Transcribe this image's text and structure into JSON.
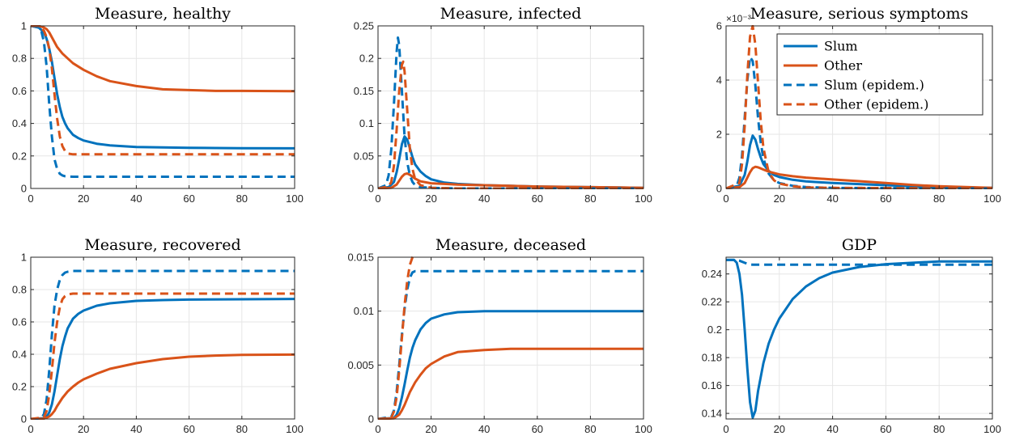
{
  "colors": {
    "slum": "#0072BD",
    "other": "#D95319"
  },
  "legend": {
    "placement": "top-right",
    "entries": [
      "Slum",
      "Other",
      "Slum (epidem.)",
      "Other (epidem.)"
    ]
  },
  "chart_data": [
    {
      "type": "line",
      "title": "Measure, healthy",
      "xlim": [
        0,
        100
      ],
      "ylim": [
        0,
        1
      ],
      "grid": true,
      "xticks": [
        0,
        20,
        40,
        60,
        80,
        100
      ],
      "yticks": [
        0,
        0.2,
        0.4,
        0.6,
        0.8,
        1
      ],
      "ytick_labels": [
        "0",
        "0.2",
        "0.4",
        "0.6",
        "0.8",
        "1"
      ],
      "series": [
        {
          "name": "Slum",
          "x": [
            0,
            3,
            5,
            6,
            7,
            8,
            9,
            10,
            11,
            12,
            13,
            14,
            16,
            18,
            20,
            25,
            30,
            40,
            50,
            60,
            70,
            80,
            100
          ],
          "y": [
            1,
            0.99,
            0.96,
            0.92,
            0.86,
            0.78,
            0.68,
            0.58,
            0.5,
            0.44,
            0.4,
            0.37,
            0.33,
            0.31,
            0.295,
            0.275,
            0.265,
            0.255,
            0.252,
            0.25,
            0.249,
            0.248,
            0.247
          ]
        },
        {
          "name": "Other",
          "x": [
            0,
            3,
            5,
            6,
            7,
            8,
            10,
            12,
            14,
            16,
            20,
            25,
            30,
            40,
            50,
            60,
            70,
            80,
            100
          ],
          "y": [
            1,
            1,
            0.99,
            0.98,
            0.96,
            0.93,
            0.87,
            0.83,
            0.8,
            0.77,
            0.73,
            0.69,
            0.66,
            0.63,
            0.61,
            0.605,
            0.6,
            0.6,
            0.598
          ]
        },
        {
          "name": "Slum (epidem.)",
          "x": [
            0,
            3,
            4,
            5,
            6,
            7,
            8,
            9,
            10,
            11,
            12,
            13,
            14,
            16,
            100
          ],
          "y": [
            1,
            0.99,
            0.97,
            0.9,
            0.75,
            0.52,
            0.32,
            0.18,
            0.12,
            0.09,
            0.08,
            0.075,
            0.073,
            0.072,
            0.072
          ]
        },
        {
          "name": "Other (epidem.)",
          "x": [
            0,
            3,
            5,
            6,
            7,
            8,
            9,
            10,
            11,
            12,
            13,
            14,
            16,
            100
          ],
          "y": [
            1,
            1,
            0.97,
            0.93,
            0.86,
            0.74,
            0.58,
            0.43,
            0.32,
            0.26,
            0.23,
            0.215,
            0.21,
            0.21
          ]
        }
      ]
    },
    {
      "type": "line",
      "title": "Measure, infected",
      "xlim": [
        0,
        100
      ],
      "ylim": [
        0,
        0.25
      ],
      "grid": true,
      "xticks": [
        0,
        20,
        40,
        60,
        80,
        100
      ],
      "yticks": [
        0,
        0.05,
        0.1,
        0.15,
        0.2,
        0.25
      ],
      "ytick_labels": [
        "0",
        "0.05",
        "0.1",
        "0.15",
        "0.2",
        "0.25"
      ],
      "series": [
        {
          "name": "Slum",
          "x": [
            0,
            4,
            6,
            7,
            8,
            9,
            10,
            11,
            12,
            13,
            14,
            16,
            18,
            20,
            25,
            30,
            40,
            50,
            60,
            80,
            100
          ],
          "y": [
            0,
            0.002,
            0.01,
            0.025,
            0.045,
            0.068,
            0.08,
            0.075,
            0.062,
            0.048,
            0.037,
            0.026,
            0.019,
            0.014,
            0.009,
            0.007,
            0.005,
            0.004,
            0.003,
            0.002,
            0.001
          ]
        },
        {
          "name": "Other",
          "x": [
            0,
            5,
            7,
            8,
            9,
            10,
            11,
            12,
            13,
            14,
            16,
            20,
            25,
            30,
            40,
            60,
            80,
            100
          ],
          "y": [
            0,
            0.001,
            0.006,
            0.012,
            0.018,
            0.022,
            0.023,
            0.021,
            0.018,
            0.015,
            0.011,
            0.008,
            0.007,
            0.006,
            0.005,
            0.003,
            0.002,
            0.001
          ]
        },
        {
          "name": "Slum (epidem.)",
          "x": [
            0,
            3,
            4,
            5,
            6,
            7,
            7.5,
            8,
            9,
            10,
            11,
            12,
            13,
            14,
            16,
            20,
            30,
            100
          ],
          "y": [
            0,
            0.005,
            0.02,
            0.06,
            0.13,
            0.21,
            0.232,
            0.22,
            0.15,
            0.08,
            0.04,
            0.02,
            0.01,
            0.005,
            0.002,
            0.001,
            0,
            0
          ]
        },
        {
          "name": "Other (epidem.)",
          "x": [
            0,
            4,
            5,
            6,
            7,
            8,
            9,
            9.5,
            10,
            11,
            12,
            13,
            14,
            16,
            20,
            30,
            100
          ],
          "y": [
            0,
            0.003,
            0.01,
            0.035,
            0.09,
            0.15,
            0.19,
            0.195,
            0.18,
            0.12,
            0.06,
            0.03,
            0.014,
            0.005,
            0.001,
            0,
            0
          ]
        }
      ]
    },
    {
      "type": "line",
      "title": "Measure, serious symptoms",
      "xlim": [
        0,
        100
      ],
      "ylim": [
        0,
        6
      ],
      "grid": true,
      "exponent_label": "×10⁻³",
      "xticks": [
        0,
        20,
        40,
        60,
        80,
        100
      ],
      "yticks": [
        0,
        2,
        4,
        6
      ],
      "ytick_labels": [
        "0",
        "2",
        "4",
        "6"
      ],
      "series": [
        {
          "name": "Slum",
          "x": [
            0,
            5,
            7,
            8,
            9,
            10,
            11,
            12,
            13,
            14,
            16,
            18,
            20,
            25,
            30,
            40,
            50,
            60,
            70,
            80,
            100
          ],
          "y": [
            0,
            0.1,
            0.5,
            1.0,
            1.6,
            1.95,
            1.8,
            1.45,
            1.15,
            0.9,
            0.65,
            0.5,
            0.42,
            0.32,
            0.26,
            0.2,
            0.16,
            0.12,
            0.08,
            0.05,
            0.02
          ]
        },
        {
          "name": "Other",
          "x": [
            0,
            5,
            7,
            8,
            9,
            10,
            11,
            12,
            13,
            14,
            16,
            20,
            25,
            30,
            40,
            50,
            60,
            70,
            80,
            90,
            100
          ],
          "y": [
            0,
            0.05,
            0.2,
            0.4,
            0.6,
            0.75,
            0.8,
            0.78,
            0.74,
            0.7,
            0.62,
            0.52,
            0.45,
            0.4,
            0.33,
            0.27,
            0.2,
            0.13,
            0.08,
            0.05,
            0.02
          ]
        },
        {
          "name": "Slum (epidem.)",
          "x": [
            0,
            4,
            5,
            6,
            7,
            8,
            9,
            10,
            11,
            12,
            13,
            14,
            16,
            18,
            20,
            25,
            30,
            40,
            100
          ],
          "y": [
            0,
            0.1,
            0.4,
            1.2,
            2.6,
            4.0,
            4.85,
            4.7,
            3.8,
            2.6,
            1.7,
            1.1,
            0.55,
            0.3,
            0.2,
            0.1,
            0.05,
            0.02,
            0
          ]
        },
        {
          "name": "Other (epidem.)",
          "x": [
            0,
            5,
            6,
            7,
            8,
            9,
            10,
            11,
            12,
            13,
            14,
            16,
            18,
            20,
            25,
            30,
            40,
            100
          ],
          "y": [
            0,
            0.2,
            0.9,
            2.3,
            4.2,
            5.6,
            6.0,
            5.3,
            3.9,
            2.5,
            1.5,
            0.6,
            0.3,
            0.18,
            0.08,
            0.04,
            0.02,
            0
          ]
        }
      ]
    },
    {
      "type": "line",
      "title": "Measure, recovered",
      "xlim": [
        0,
        100
      ],
      "ylim": [
        0,
        1
      ],
      "grid": true,
      "xticks": [
        0,
        20,
        40,
        60,
        80,
        100
      ],
      "yticks": [
        0,
        0.2,
        0.4,
        0.6,
        0.8,
        1
      ],
      "ytick_labels": [
        "0",
        "0.2",
        "0.4",
        "0.6",
        "0.8",
        "1"
      ],
      "series": [
        {
          "name": "Slum",
          "x": [
            0,
            5,
            6,
            7,
            8,
            9,
            10,
            11,
            12,
            13,
            14,
            16,
            18,
            20,
            25,
            30,
            40,
            50,
            60,
            80,
            100
          ],
          "y": [
            0,
            0.005,
            0.015,
            0.04,
            0.09,
            0.17,
            0.27,
            0.37,
            0.45,
            0.51,
            0.56,
            0.62,
            0.65,
            0.67,
            0.7,
            0.715,
            0.73,
            0.735,
            0.738,
            0.74,
            0.742
          ]
        },
        {
          "name": "Other",
          "x": [
            0,
            5,
            7,
            8,
            9,
            10,
            12,
            14,
            16,
            18,
            20,
            25,
            30,
            40,
            50,
            60,
            70,
            80,
            100
          ],
          "y": [
            0,
            0.002,
            0.015,
            0.03,
            0.05,
            0.08,
            0.13,
            0.17,
            0.2,
            0.225,
            0.245,
            0.28,
            0.31,
            0.345,
            0.37,
            0.385,
            0.392,
            0.396,
            0.398
          ]
        },
        {
          "name": "Slum (epidem.)",
          "x": [
            0,
            4,
            5,
            6,
            7,
            8,
            9,
            10,
            11,
            12,
            13,
            14,
            16,
            100
          ],
          "y": [
            0,
            0.005,
            0.03,
            0.12,
            0.3,
            0.52,
            0.7,
            0.8,
            0.86,
            0.89,
            0.905,
            0.91,
            0.915,
            0.915
          ]
        },
        {
          "name": "Other (epidem.)",
          "x": [
            0,
            5,
            6,
            7,
            8,
            9,
            10,
            11,
            12,
            13,
            14,
            16,
            100
          ],
          "y": [
            0,
            0.01,
            0.05,
            0.15,
            0.3,
            0.47,
            0.6,
            0.69,
            0.74,
            0.76,
            0.77,
            0.775,
            0.775
          ]
        }
      ]
    },
    {
      "type": "line",
      "title": "Measure, deceased",
      "xlim": [
        0,
        100
      ],
      "ylim": [
        0,
        0.015
      ],
      "grid": true,
      "xticks": [
        0,
        20,
        40,
        60,
        80,
        100
      ],
      "yticks": [
        0,
        0.005,
        0.01,
        0.015
      ],
      "ytick_labels": [
        "0",
        "0.005",
        "0.01",
        "0.015"
      ],
      "series": [
        {
          "name": "Slum",
          "x": [
            0,
            6,
            7,
            8,
            9,
            10,
            11,
            12,
            13,
            14,
            16,
            18,
            20,
            25,
            30,
            40,
            50,
            60,
            80,
            100
          ],
          "y": [
            0,
            0.0001,
            0.0004,
            0.001,
            0.002,
            0.0032,
            0.0045,
            0.0057,
            0.0066,
            0.0073,
            0.0083,
            0.0089,
            0.0093,
            0.0097,
            0.0099,
            0.01,
            0.01,
            0.01,
            0.01,
            0.01
          ]
        },
        {
          "name": "Other",
          "x": [
            0,
            6,
            8,
            9,
            10,
            11,
            12,
            14,
            16,
            18,
            20,
            25,
            30,
            40,
            50,
            60,
            80,
            100
          ],
          "y": [
            0,
            5e-05,
            0.0004,
            0.0008,
            0.0013,
            0.0019,
            0.0025,
            0.0034,
            0.0041,
            0.0047,
            0.0051,
            0.0058,
            0.0062,
            0.0064,
            0.0065,
            0.0065,
            0.0065,
            0.0065
          ]
        },
        {
          "name": "Slum (epidem.)",
          "x": [
            0,
            5,
            6,
            7,
            8,
            9,
            10,
            11,
            12,
            13,
            14,
            16,
            100
          ],
          "y": [
            0,
            0.0002,
            0.0008,
            0.0025,
            0.005,
            0.0078,
            0.0102,
            0.012,
            0.0131,
            0.0136,
            0.0137,
            0.0137,
            0.0137
          ]
        },
        {
          "name": "Other (epidem.)",
          "x": [
            0,
            5,
            6,
            7,
            8,
            9,
            10,
            11,
            12,
            13,
            14,
            16,
            100
          ],
          "y": [
            0,
            0.0001,
            0.0007,
            0.002,
            0.0045,
            0.0075,
            0.0105,
            0.0128,
            0.0143,
            0.015,
            0.0153,
            0.0154,
            0.0154
          ]
        }
      ]
    },
    {
      "type": "line",
      "title": "GDP",
      "xlim": [
        0,
        100
      ],
      "ylim": [
        0.136,
        0.252
      ],
      "grid": true,
      "xticks": [
        0,
        20,
        40,
        60,
        80,
        100
      ],
      "yticks": [
        0.14,
        0.16,
        0.18,
        0.2,
        0.22,
        0.24
      ],
      "ytick_labels": [
        "0.14",
        "0.16",
        "0.18",
        "0.2",
        "0.22",
        "0.24"
      ],
      "series": [
        {
          "name": "Slum",
          "x": [
            0,
            3,
            4,
            5,
            6,
            7,
            8,
            9,
            10,
            11,
            12,
            14,
            16,
            18,
            20,
            25,
            30,
            35,
            40,
            50,
            60,
            70,
            80,
            100
          ],
          "y": [
            0.25,
            0.25,
            0.248,
            0.24,
            0.225,
            0.2,
            0.172,
            0.148,
            0.137,
            0.142,
            0.156,
            0.176,
            0.19,
            0.2,
            0.208,
            0.222,
            0.231,
            0.237,
            0.241,
            0.245,
            0.247,
            0.248,
            0.249,
            0.249
          ]
        },
        {
          "name": "Slum (epidem.)",
          "x": [
            0,
            3,
            5,
            7,
            9,
            10,
            12,
            15,
            100
          ],
          "y": [
            0.25,
            0.25,
            0.2495,
            0.248,
            0.2468,
            0.2466,
            0.2466,
            0.2466,
            0.2466
          ]
        }
      ]
    }
  ]
}
